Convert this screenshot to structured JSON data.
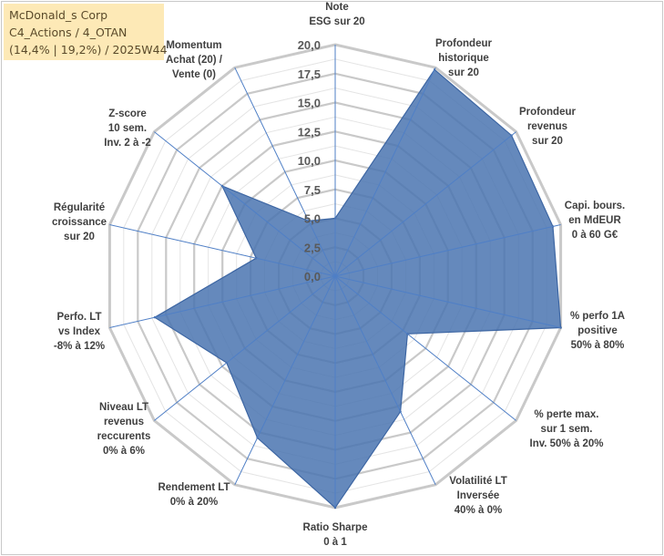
{
  "info": {
    "line1": "McDonald_s Corp",
    "line2": "C4_Actions / 4_OTAN",
    "line3": "(14,4% | 19,2%) / 2025W44"
  },
  "chart_data": {
    "type": "radar",
    "title": "",
    "range": [
      0,
      20
    ],
    "ticks": [
      "0,0",
      "2,5",
      "5,0",
      "7,5",
      "10,0",
      "12,5",
      "15,0",
      "17,5",
      "20,0"
    ],
    "tick_values": [
      0,
      2.5,
      5,
      7.5,
      10,
      12.5,
      15,
      17.5,
      20
    ],
    "categories": [
      [
        "Note",
        "ESG sur 20"
      ],
      [
        "Profondeur",
        "historique",
        "sur 20"
      ],
      [
        "Profondeur",
        "revenus",
        "sur 20"
      ],
      [
        "Capi. bours.",
        "en MdEUR",
        "0 à 60 G€"
      ],
      [
        "% perfo 1A",
        "positive",
        "50% à 80%"
      ],
      [
        "% perte max.",
        "sur 1 sem.",
        "Inv. 50% à 20%"
      ],
      [
        "Volatilité LT",
        "Inversée",
        "40% à 0%"
      ],
      [
        "Ratio Sharpe",
        "0 à 1"
      ],
      [
        "Rendement LT",
        "0% à 20%"
      ],
      [
        "Niveau LT",
        "revenus",
        "reccurents",
        "0% à 6%"
      ],
      [
        "Perfo. LT",
        "vs Index",
        "-8% à 12%"
      ],
      [
        "Régularité",
        "croissance",
        "sur 20"
      ],
      [
        "Z-score",
        "10 sem.",
        "Inv. 2 à -2"
      ],
      [
        "Momentum",
        "Achat (20) /",
        "Vente (0)"
      ]
    ],
    "series": [
      {
        "name": "McDonald_s Corp",
        "color": "#4a74b0",
        "values": [
          5.0,
          19.8,
          19.5,
          19.3,
          20.0,
          8.0,
          13.0,
          20.0,
          15.5,
          12.0,
          16.0,
          7.0,
          12.5,
          5.3
        ]
      }
    ]
  }
}
